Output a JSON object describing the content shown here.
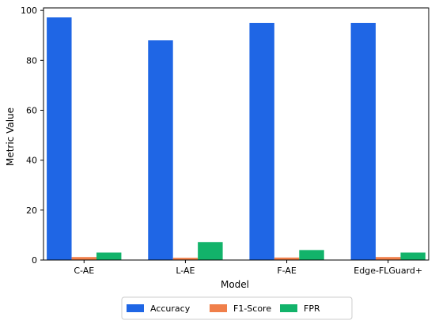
{
  "chart_data": {
    "type": "bar",
    "categories": [
      "C-AE",
      "L-AE",
      "F-AE",
      "Edge-FLGuard+"
    ],
    "series": [
      {
        "name": "Accuracy",
        "values": [
          97.2,
          88.0,
          95.0,
          95.0
        ],
        "color": "#1f66e5"
      },
      {
        "name": "F1-Score",
        "values": [
          1.2,
          0.9,
          1.0,
          1.2
        ],
        "color": "#f07f4a"
      },
      {
        "name": "FPR",
        "values": [
          3.0,
          7.2,
          4.0,
          3.0
        ],
        "color": "#12b36a"
      }
    ],
    "xlabel": "Model",
    "ylabel": "Metric Value",
    "ylim": [
      0,
      101
    ],
    "yticks": [
      0,
      20,
      40,
      60,
      80,
      100
    ],
    "grid": false,
    "legend": "bottom-center"
  }
}
